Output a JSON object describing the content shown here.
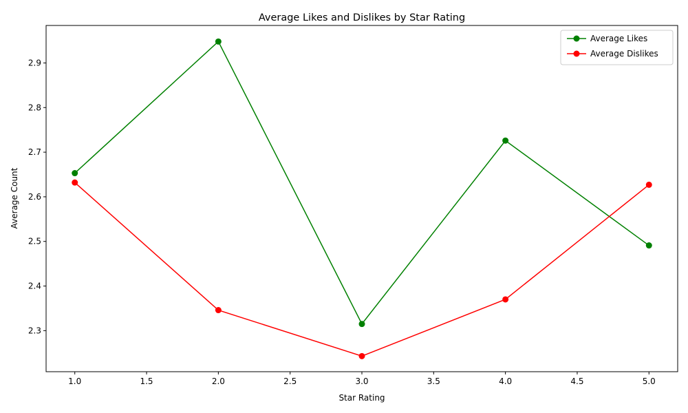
{
  "chart_data": {
    "type": "line",
    "title": "Average Likes and Dislikes by Star Rating",
    "xlabel": "Star Rating",
    "ylabel": "Average Count",
    "x": [
      1,
      2,
      3,
      4,
      5
    ],
    "xlim": [
      0.8,
      5.2
    ],
    "ylim": [
      2.208,
      2.984
    ],
    "xticks": [
      1.0,
      1.5,
      2.0,
      2.5,
      3.0,
      3.5,
      4.0,
      4.5,
      5.0
    ],
    "xtick_labels": [
      "1.0",
      "1.5",
      "2.0",
      "2.5",
      "3.0",
      "3.5",
      "4.0",
      "4.5",
      "5.0"
    ],
    "yticks": [
      2.3,
      2.4,
      2.5,
      2.6,
      2.7,
      2.8,
      2.9
    ],
    "ytick_labels": [
      "2.3",
      "2.4",
      "2.5",
      "2.6",
      "2.7",
      "2.8",
      "2.9"
    ],
    "grid": false,
    "legend_position": "top-right",
    "series": [
      {
        "name": "Average Likes",
        "color": "#008000",
        "marker": "circle",
        "values": [
          2.653,
          2.948,
          2.315,
          2.726,
          2.491
        ]
      },
      {
        "name": "Average Dislikes",
        "color": "#ff0000",
        "marker": "circle",
        "values": [
          2.632,
          2.346,
          2.243,
          2.37,
          2.627
        ]
      }
    ]
  }
}
